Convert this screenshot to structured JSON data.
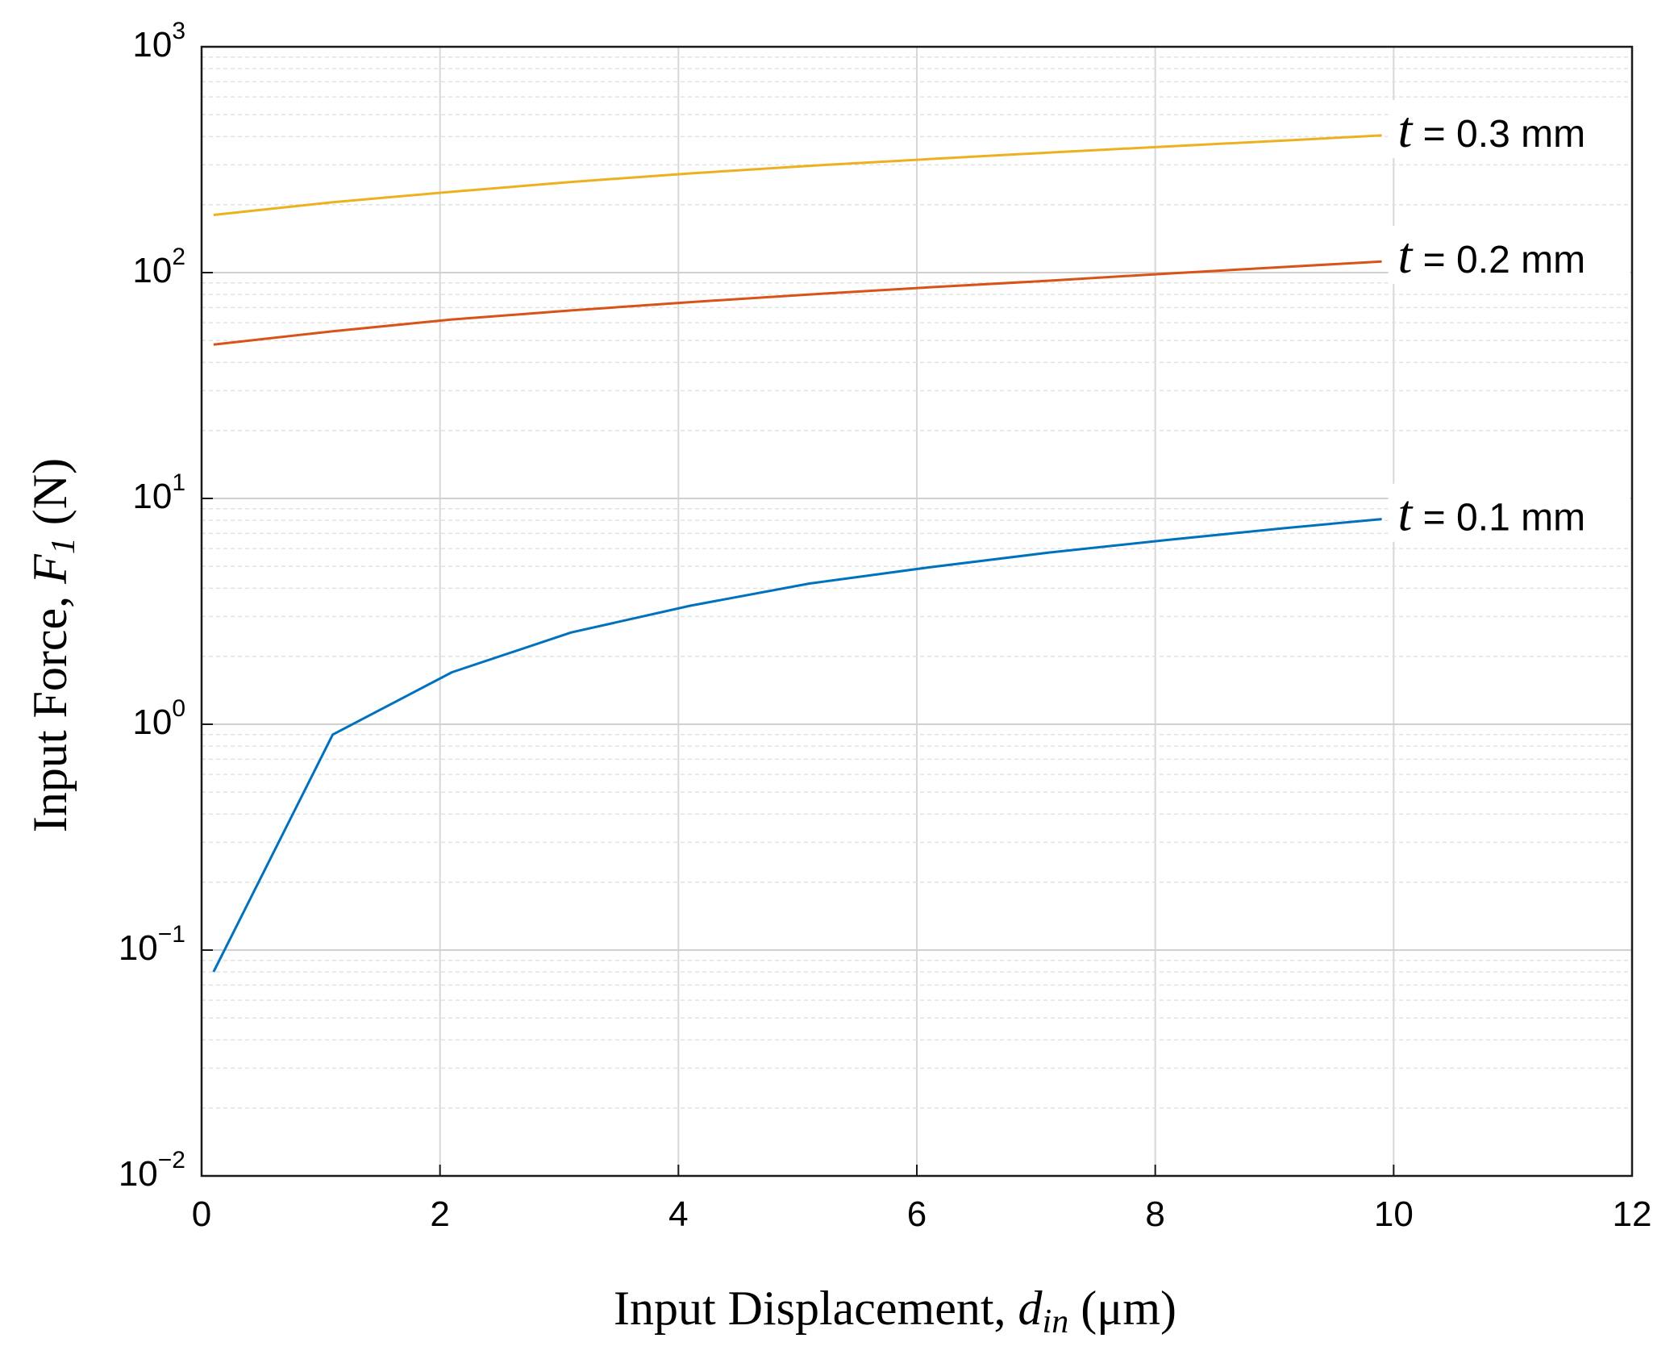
{
  "chart_data": {
    "type": "line",
    "xlabel": {
      "prefix": "Input Displacement, ",
      "var": "d",
      "sub": "in",
      "suffix": " (μm)"
    },
    "ylabel": {
      "prefix": "Input Force, ",
      "var": "F",
      "sub": "1",
      "suffix": " (N)"
    },
    "xlim": [
      0,
      12
    ],
    "ylim": [
      0.01,
      1000
    ],
    "yscale": "log",
    "grid": true,
    "x_ticks": [
      "0",
      "2",
      "4",
      "6",
      "8",
      "10",
      "12"
    ],
    "y_ticks": [
      {
        "value": 0.01,
        "base": "10",
        "exp": "−2"
      },
      {
        "value": 0.1,
        "base": "10",
        "exp": "−1"
      },
      {
        "value": 1,
        "base": "10",
        "exp": "0"
      },
      {
        "value": 10,
        "base": "10",
        "exp": "1"
      },
      {
        "value": 100,
        "base": "10",
        "exp": "2"
      },
      {
        "value": 1000,
        "base": "10",
        "exp": "3"
      }
    ],
    "series": [
      {
        "name": "t = 0.3 mm",
        "label_var": "t",
        "label_text": " = 0.3 mm",
        "color": "#EDB120",
        "x": [
          0.1,
          1.1,
          2.1,
          3.1,
          4.1,
          5.1,
          6.1,
          7.1,
          8.1,
          9.1,
          9.9
        ],
        "y": [
          180,
          205,
          228,
          252,
          275,
          297,
          318,
          340,
          362,
          385,
          405
        ]
      },
      {
        "name": "t = 0.2 mm",
        "label_var": "t",
        "label_text": " = 0.2 mm",
        "color": "#D95319",
        "x": [
          0.1,
          1.1,
          2.1,
          3.1,
          4.1,
          5.1,
          6.1,
          7.1,
          8.1,
          9.1,
          9.9
        ],
        "y": [
          48,
          55,
          62,
          68,
          74,
          80,
          86,
          92,
          99,
          106,
          112
        ]
      },
      {
        "name": "t = 0.1 mm",
        "label_var": "t",
        "label_text": " = 0.1 mm",
        "color": "#0072BD",
        "x": [
          0.1,
          1.1,
          2.1,
          3.1,
          4.1,
          5.1,
          6.1,
          7.1,
          8.1,
          9.1,
          9.9
        ],
        "y": [
          0.08,
          0.9,
          1.7,
          2.55,
          3.35,
          4.2,
          4.95,
          5.75,
          6.55,
          7.4,
          8.1
        ]
      }
    ]
  }
}
